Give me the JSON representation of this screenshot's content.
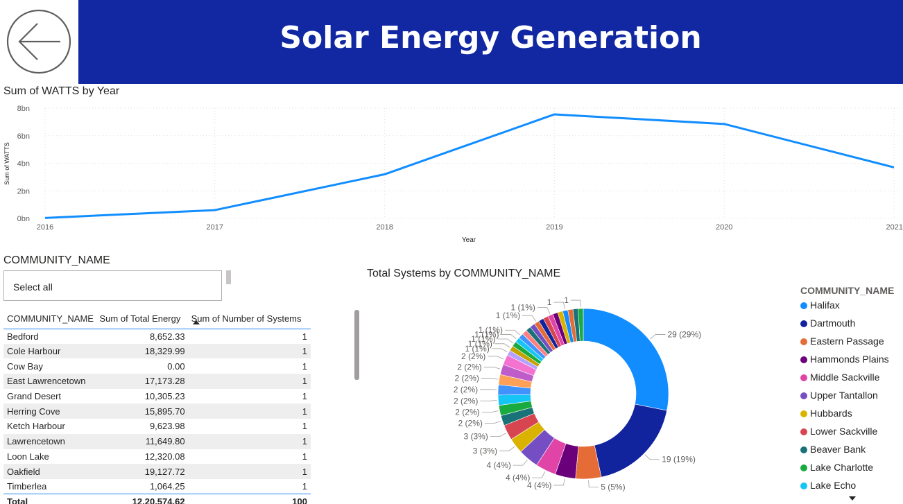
{
  "header": {
    "title": "Solar Energy Generation"
  },
  "line_chart": {
    "title": "Sum of WATTS by Year"
  },
  "chart_data": [
    {
      "type": "line",
      "title": "Sum of WATTS by Year",
      "xlabel": "Year",
      "ylabel": "Sum of WATTS",
      "x": [
        "2016",
        "2017",
        "2018",
        "2019",
        "2020",
        "2021"
      ],
      "y_tick_labels": [
        "0bn",
        "2bn",
        "4bn",
        "6bn",
        "8bn"
      ],
      "ylim": [
        0,
        8000000000
      ],
      "series": [
        {
          "values": [
            30000000,
            600000000,
            3200000000,
            7550000000,
            6850000000,
            3700000000
          ]
        }
      ],
      "grid": true,
      "color": "#118dff"
    },
    {
      "type": "pie",
      "title": "Total Systems by COMMUNITY_NAME",
      "donut": true,
      "legend_title": "COMMUNITY_NAME",
      "legend_placement": "right",
      "slices": [
        {
          "name": "Halifax",
          "value": 29,
          "label": "29 (29%)",
          "color": "#118dff"
        },
        {
          "name": "Dartmouth",
          "value": 19,
          "label": "19 (19%)",
          "color": "#12239e"
        },
        {
          "name": "Eastern Passage",
          "value": 5,
          "label": "5 (5%)",
          "color": "#e66c37"
        },
        {
          "name": "Hammonds Plains",
          "value": 4,
          "label": "4 (4%)",
          "color": "#6b007b"
        },
        {
          "name": "Middle Sackville",
          "value": 4,
          "label": "4 (4%)",
          "color": "#e044a7"
        },
        {
          "name": "Upper Tantallon",
          "value": 4,
          "label": "4 (4%)",
          "color": "#744ec2"
        },
        {
          "name": "Hubbards",
          "value": 3,
          "label": "3 (3%)",
          "color": "#d9b300"
        },
        {
          "name": "Lower Sackville",
          "value": 3,
          "label": "3 (3%)",
          "color": "#d64550"
        },
        {
          "name": "Beaver Bank",
          "value": 2,
          "label": "2 (2%)",
          "color": "#197278"
        },
        {
          "name": "Lake Charlotte",
          "value": 2,
          "label": "2 (2%)",
          "color": "#1aab40"
        },
        {
          "name": "Lake Echo",
          "value": 2,
          "label": "2 (2%)",
          "color": "#15c6f4"
        },
        {
          "name": "",
          "value": 2,
          "label": "2 (2%)",
          "color": "#4092ff"
        },
        {
          "name": "",
          "value": 2,
          "label": "2 (2%)",
          "color": "#ffa058"
        },
        {
          "name": "",
          "value": 2,
          "label": "2 (2%)",
          "color": "#be5dc9"
        },
        {
          "name": "",
          "value": 2,
          "label": "2 (2%)",
          "color": "#f472d0"
        },
        {
          "name": "",
          "value": 1,
          "label": "1 (1%)",
          "color": "#b5a1ff"
        },
        {
          "name": "",
          "value": 1,
          "label": "1 (1%)",
          "color": "#c4a200"
        },
        {
          "name": "",
          "value": 1,
          "label": "1 (1%)",
          "color": "#1aab40"
        },
        {
          "name": "",
          "value": 1,
          "label": "1 (1%)",
          "color": "#15c6f4"
        },
        {
          "name": "",
          "value": 1,
          "label": "1 (1%)",
          "color": "#4092ff"
        },
        {
          "name": "",
          "value": 1,
          "label": "",
          "color": "#ff8080"
        },
        {
          "name": "",
          "value": 1,
          "label": "",
          "color": "#197278"
        },
        {
          "name": "",
          "value": 1,
          "label": "",
          "color": "#744ec2"
        },
        {
          "name": "",
          "value": 1,
          "label": "1 (1%)",
          "color": "#e66c37"
        },
        {
          "name": "",
          "value": 1,
          "label": "",
          "color": "#12239e"
        },
        {
          "name": "",
          "value": 1,
          "label": "",
          "color": "#d64550"
        },
        {
          "name": "",
          "value": 1,
          "label": "1 (1%)",
          "color": "#e044a7"
        },
        {
          "name": "",
          "value": 1,
          "label": "",
          "color": "#6b007b"
        },
        {
          "name": "",
          "value": 1,
          "label": "",
          "color": "#d9b300"
        },
        {
          "name": "",
          "value": 1,
          "label": "1",
          "color": "#118dff"
        },
        {
          "name": "",
          "value": 1,
          "label": "",
          "color": "#e66c37"
        },
        {
          "name": "",
          "value": 1,
          "label": "",
          "color": "#197278"
        },
        {
          "name": "",
          "value": 1,
          "label": "1",
          "color": "#1aab40"
        }
      ]
    }
  ],
  "slicer": {
    "title": "COMMUNITY_NAME",
    "option": "Select all"
  },
  "table": {
    "columns": [
      "COMMUNITY_NAME",
      "Sum of Total Energy",
      "Sum of Number of Systems"
    ],
    "rows": [
      [
        "Bedford",
        "8,652.33",
        "1"
      ],
      [
        "Cole Harbour",
        "18,329.99",
        "1"
      ],
      [
        "Cow Bay",
        "0.00",
        "1"
      ],
      [
        "East Lawrencetown",
        "17,173.28",
        "1"
      ],
      [
        "Grand Desert",
        "10,305.23",
        "1"
      ],
      [
        "Herring Cove",
        "15,895.70",
        "1"
      ],
      [
        "Ketch Harbour",
        "9,623.98",
        "1"
      ],
      [
        "Lawrencetown",
        "11,649.80",
        "1"
      ],
      [
        "Loon Lake",
        "12,320.08",
        "1"
      ],
      [
        "Oakfield",
        "19,127.72",
        "1"
      ],
      [
        "Timberlea",
        "1,064.25",
        "1"
      ]
    ],
    "total": [
      "Total",
      "12,20,574.62",
      "100"
    ]
  }
}
